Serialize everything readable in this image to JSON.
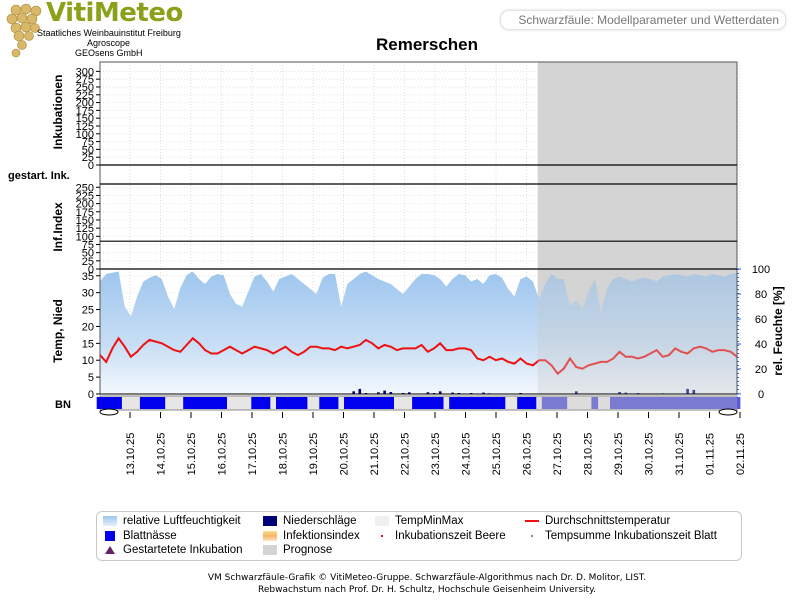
{
  "header": {
    "logo_title": "VitiMeteo",
    "logo_line1": "Staatliches Weinbauinstitut Freiburg",
    "logo_line2": "Agroscope",
    "logo_line3": "GEOsens GmbH",
    "page_label": "Schwarzfäule: Modellparameter und Wetterdaten"
  },
  "colors": {
    "humidity": "#9ec6ee",
    "temperature": "#ee1111",
    "leaf_wetness": "#0000ee",
    "precipitation": "#00007a",
    "forecast": "#d4d4d4",
    "axis_right": "#3366cc"
  },
  "chart_data": {
    "type": "area",
    "title": "Remerschen",
    "x_dates": [
      "13.10.25",
      "14.10.25",
      "15.10.25",
      "16.10.25",
      "17.10.25",
      "18.10.25",
      "19.10.25",
      "20.10.25",
      "21.10.25",
      "22.10.25",
      "23.10.25",
      "24.10.25",
      "25.10.25",
      "26.10.25",
      "27.10.25",
      "28.10.25",
      "29.10.25",
      "30.10.25",
      "31.10.25",
      "01.11.25",
      "02.11.25"
    ],
    "forecast_from": "27.10.25",
    "panels": {
      "incubations": {
        "ylabel": "Inkubationen",
        "ylim": [
          0,
          330
        ],
        "yticks": [
          0,
          25,
          50,
          75,
          100,
          125,
          150,
          175,
          200,
          225,
          250,
          275,
          300
        ],
        "values": "all 0"
      },
      "started_incubations": {
        "ylabel": "gestart. Ink.",
        "values": "none"
      },
      "infection_index": {
        "ylabel": "Inf.Index",
        "ylim": [
          0,
          260
        ],
        "yticks": [
          0,
          25,
          50,
          75,
          100,
          125,
          150,
          175,
          200,
          225,
          250
        ],
        "threshold": 85
      },
      "weather": {
        "ylabel_left": "Temp, Nied",
        "ylim_left": [
          0,
          37
        ],
        "yticks_left": [
          0,
          5,
          10,
          15,
          20,
          25,
          30,
          35
        ],
        "ylabel_right": "rel. Feuchte [%]",
        "ylim_right": [
          0,
          100
        ],
        "yticks_right": [
          0,
          20,
          40,
          60,
          80,
          100
        ],
        "series": [
          {
            "name": "relative Luftfeuchtigkeit",
            "axis": "right",
            "values": [
              90,
              96,
              97,
              98,
              70,
              62,
              78,
              90,
              93,
              95,
              92,
              78,
              68,
              85,
              95,
              98,
              92,
              88,
              94,
              96,
              95,
              80,
              72,
              70,
              82,
              94,
              96,
              90,
              82,
              92,
              94,
              96,
              92,
              88,
              84,
              80,
              93,
              96,
              96,
              70,
              88,
              92,
              96,
              98,
              95,
              92,
              90,
              88,
              84,
              80,
              86,
              92,
              96,
              96,
              95,
              92,
              86,
              92,
              96,
              95,
              90,
              92,
              88,
              95,
              96,
              93,
              84,
              78,
              92,
              94,
              90,
              76,
              88,
              96,
              92,
              92,
              70,
              75,
              68,
              82,
              92,
              65,
              85,
              92,
              94,
              92,
              90,
              92,
              93,
              92,
              90,
              94,
              95,
              96,
              95,
              94,
              96,
              95,
              94,
              96,
              95,
              94,
              96,
              97
            ]
          },
          {
            "name": "Durchschnittstemperatur",
            "axis": "left",
            "values": [
              11.5,
              9.5,
              13.5,
              16.5,
              14,
              11,
              12.5,
              14.5,
              16,
              15.5,
              15,
              14,
              13,
              12.5,
              14.5,
              16.5,
              15,
              13,
              12,
              12,
              13,
              14,
              13,
              12,
              13,
              14,
              13.5,
              13,
              12,
              13,
              14,
              12.5,
              11.5,
              12.5,
              14,
              14,
              13.5,
              13.5,
              13,
              14,
              13.5,
              14,
              14.5,
              16,
              15,
              13.5,
              14.5,
              14,
              13,
              13.5,
              13.5,
              13.5,
              14.5,
              12.5,
              13.5,
              15,
              13,
              13,
              13.5,
              13.5,
              13,
              10.5,
              10,
              11,
              10,
              10.5,
              9.5,
              9,
              10.5,
              9,
              8.5,
              10,
              10,
              8.5,
              6,
              7.5,
              10.5,
              8,
              7.5,
              8.5,
              9,
              9.5,
              9.5,
              10.5,
              12.5,
              11,
              11,
              10.5,
              11,
              12,
              13,
              11,
              11.5,
              13.5,
              12.5,
              12,
              13.5,
              14,
              13.5,
              12.5,
              13,
              13,
              12.5,
              11
            ]
          },
          {
            "name": "Niederschläge",
            "axis": "left",
            "values": [
              0,
              0,
              0,
              0,
              0,
              0,
              0,
              0,
              0,
              0,
              0,
              0,
              0,
              0,
              0,
              0,
              0,
              0,
              0,
              0,
              0,
              0,
              0,
              0,
              0,
              0,
              0,
              0,
              0,
              0,
              0,
              0,
              0,
              0,
              0,
              0,
              0,
              0,
              0,
              0,
              0,
              0.8,
              1.5,
              0.3,
              0,
              0.5,
              1,
              0.6,
              0,
              0.3,
              0.5,
              0,
              0,
              0.5,
              0.3,
              0.8,
              0,
              0.4,
              0.3,
              0,
              0.3,
              0,
              0.4,
              0.2,
              0,
              0,
              0,
              0,
              0.3,
              0,
              0,
              0,
              0,
              0,
              0,
              0,
              0,
              0.8,
              0,
              0,
              0,
              0,
              0,
              0,
              0.6,
              0.4,
              0,
              0.3,
              0,
              0,
              0,
              0.2,
              0,
              0,
              0,
              1.5,
              1.2,
              0,
              0,
              0,
              0,
              0,
              0,
              0,
              0
            ]
          }
        ]
      },
      "leaf_wetness": {
        "ylabel": "BN"
      }
    }
  },
  "legend": [
    {
      "label": "relative Luftfeuchtigkeit",
      "icon": "humidity-swatch"
    },
    {
      "label": "Niederschläge",
      "icon": "precipitation-swatch"
    },
    {
      "label": "TempMinMax",
      "icon": "tempminmax-swatch"
    },
    {
      "label": "Durchschnittstemperatur",
      "icon": "temperature-line"
    },
    {
      "label": "Blattnässe",
      "icon": "leaf-wetness-swatch"
    },
    {
      "label": "Infektionsindex",
      "icon": "infection-index-swatch"
    },
    {
      "label": "Inkubationszeit Beere",
      "icon": "berry-dot"
    },
    {
      "label": "Tempsumme Inkubationszeit Blatt",
      "icon": "leaf-dot"
    },
    {
      "label": "Gestartetete Inkubation",
      "icon": "triangle-marker"
    },
    {
      "label": "Prognose",
      "icon": "forecast-swatch"
    }
  ],
  "footer": {
    "line1": "VM Schwarzfäule-Grafik © VitiMeteo-Gruppe. Schwarzfäule-Algorithmus nach Dr. D. Molitor, LIST.",
    "line2": "Rebwachstum nach Prof. Dr. H. Schultz, Hochschule Geisenheim University."
  }
}
